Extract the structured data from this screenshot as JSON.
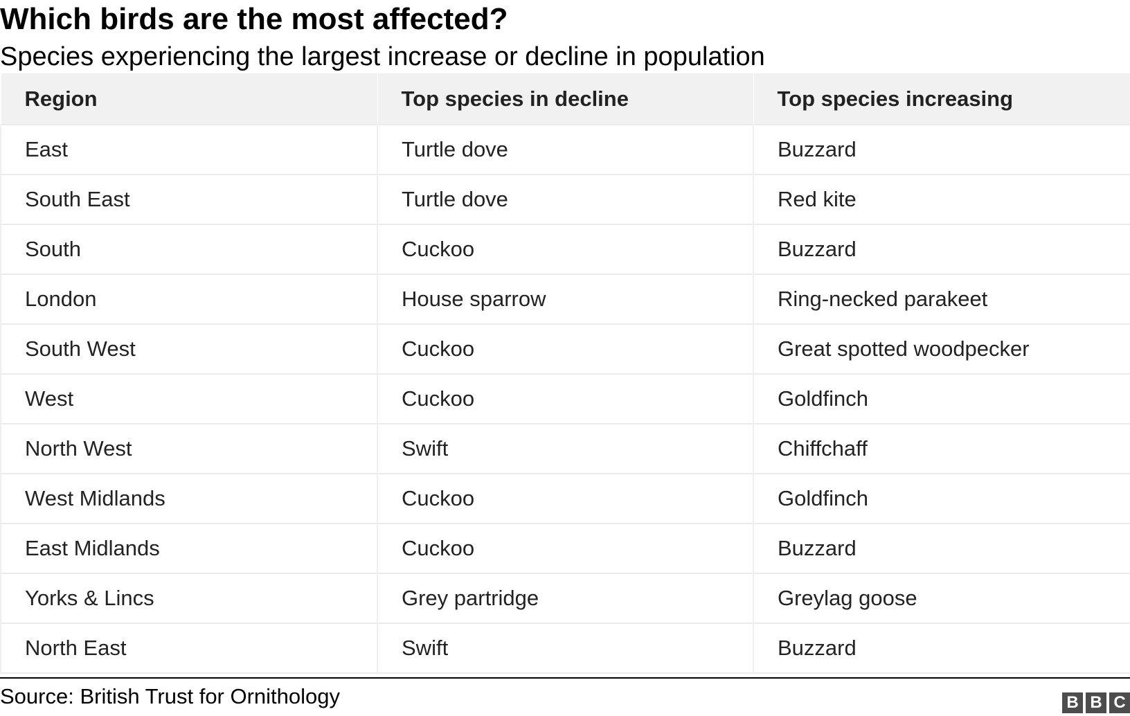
{
  "title": "Which birds are the most affected?",
  "subtitle": "Species experiencing the largest increase or decline in population",
  "chart_data": {
    "type": "table",
    "title": "Which birds are the most affected?",
    "subtitle": "Species experiencing the largest increase or decline in population",
    "columns": [
      "Region",
      "Top species in decline",
      "Top species increasing"
    ],
    "rows": [
      [
        "East",
        "Turtle dove",
        "Buzzard"
      ],
      [
        "South East",
        "Turtle dove",
        "Red kite"
      ],
      [
        "South",
        "Cuckoo",
        "Buzzard"
      ],
      [
        "London",
        "House sparrow",
        "Ring-necked parakeet"
      ],
      [
        "South West",
        "Cuckoo",
        "Great spotted woodpecker"
      ],
      [
        "West",
        "Cuckoo",
        "Goldfinch"
      ],
      [
        "North West",
        "Swift",
        "Chiffchaff"
      ],
      [
        "West Midlands",
        "Cuckoo",
        "Goldfinch"
      ],
      [
        "East Midlands",
        "Cuckoo",
        "Buzzard"
      ],
      [
        "Yorks & Lincs",
        "Grey partridge",
        "Greylag goose"
      ],
      [
        "North East",
        "Swift",
        "Buzzard"
      ]
    ]
  },
  "footer": {
    "source": "Source: British Trust for Ornithology",
    "logo_letters": [
      "B",
      "B",
      "C"
    ]
  },
  "colors": {
    "header_bg": "#f1f1f1",
    "row_border": "#ebebeb",
    "text": "#222222",
    "logo_bg": "#4d4d4d"
  }
}
